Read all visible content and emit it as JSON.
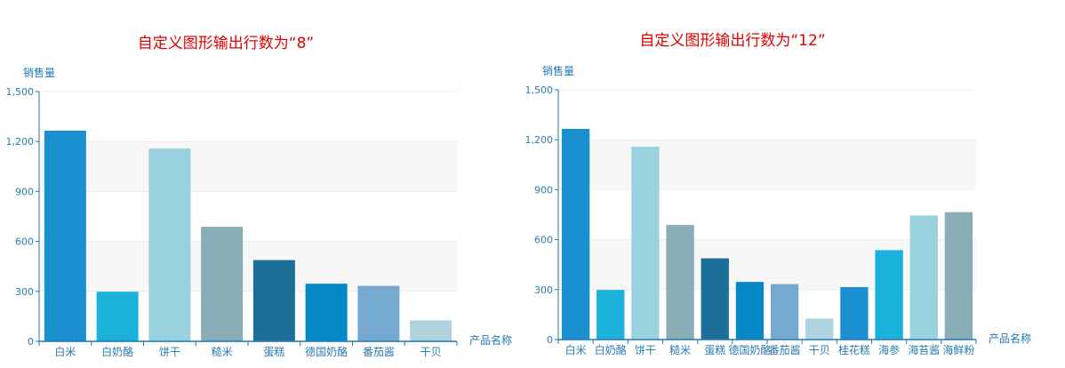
{
  "colors": {
    "title": "#e00000",
    "axis": "#1f7ab5",
    "band": "#f7f7f7",
    "palette": [
      "#1a90d0",
      "#1ab2da",
      "#99d1df",
      "#88adb7",
      "#1d6f99",
      "#0588c6",
      "#76a9d0",
      "#b0d4df"
    ]
  },
  "chart_data": [
    {
      "type": "bar",
      "title": "自定义图形输出行数为“8”",
      "ylabel": "销售量",
      "xlabel": "产品名称",
      "ylim": [
        0,
        1500
      ],
      "yticks": [
        "0",
        "300",
        "600",
        "900",
        "1,200",
        "1,500"
      ],
      "categories": [
        "白米",
        "白奶酪",
        "饼干",
        "糙米",
        "蛋糕",
        "德国奶酪",
        "番茄酱",
        "干贝"
      ],
      "values": [
        1265,
        298,
        1158,
        688,
        488,
        346,
        333,
        126
      ],
      "colors": [
        "#1a90d0",
        "#1ab2da",
        "#99d1df",
        "#88adb7",
        "#1d6f99",
        "#0588c6",
        "#76a9d0",
        "#b0d4df"
      ],
      "grid": true,
      "alternating_bands": true
    },
    {
      "type": "bar",
      "title": "自定义图形输出行数为“12”",
      "ylabel": "销售量",
      "xlabel": "产品名称",
      "ylim": [
        0,
        1500
      ],
      "yticks": [
        "0",
        "300",
        "600",
        "900",
        "1,200",
        "1,500"
      ],
      "categories": [
        "白米",
        "白奶酪",
        "饼干",
        "糙米",
        "蛋糕",
        "德国奶酪",
        "番茄酱",
        "干贝",
        "桂花糕",
        "海参",
        "海苔酱",
        "海鲜粉"
      ],
      "values": [
        1265,
        298,
        1158,
        688,
        488,
        346,
        333,
        126,
        315,
        537,
        745,
        765
      ],
      "colors": [
        "#1a90d0",
        "#1ab2da",
        "#99d1df",
        "#88adb7",
        "#1d6f99",
        "#0588c6",
        "#76a9d0",
        "#b0d4df",
        "#1a90d0",
        "#1ab2da",
        "#99d1df",
        "#88adb7"
      ],
      "grid": true,
      "alternating_bands": true
    }
  ]
}
